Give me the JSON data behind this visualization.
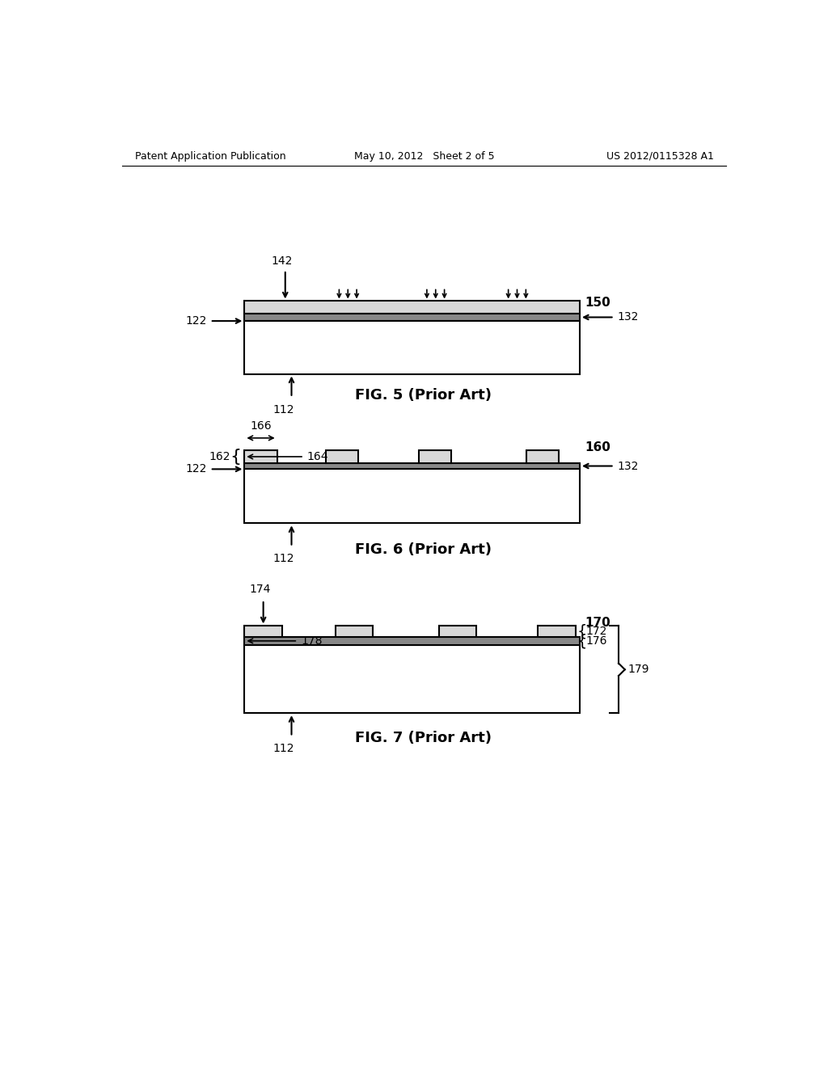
{
  "bg_color": "#ffffff",
  "line_color": "#000000",
  "header_left": "Patent Application Publication",
  "header_mid": "May 10, 2012   Sheet 2 of 5",
  "header_right": "US 2012/0115328 A1",
  "fig5_caption": "FIG. 5 (Prior Art)",
  "fig6_caption": "FIG. 6 (Prior Art)",
  "fig7_caption": "FIG. 7 (Prior Art)"
}
